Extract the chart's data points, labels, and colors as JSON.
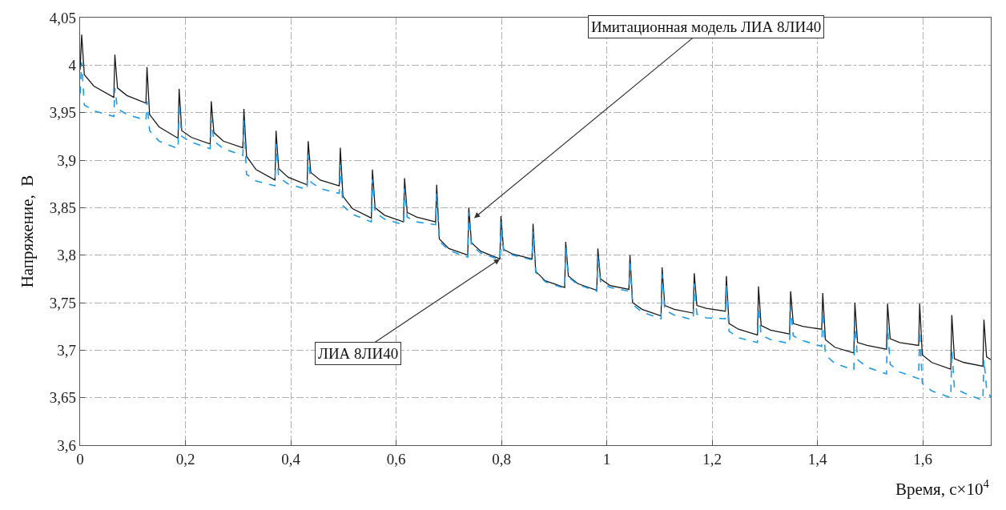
{
  "chart_data": {
    "type": "line",
    "xlabel": "Время, с×10$^{4}$",
    "ylabel": "Напряжение,  В",
    "x": [
      0,
      0.003,
      0.008,
      0.026,
      0.064,
      0.066,
      0.071,
      0.089,
      0.125,
      0.127,
      0.132,
      0.15,
      0.186,
      0.188,
      0.193,
      0.211,
      0.247,
      0.249,
      0.254,
      0.272,
      0.309,
      0.311,
      0.316,
      0.334,
      0.37,
      0.372,
      0.377,
      0.395,
      0.431,
      0.433,
      0.438,
      0.456,
      0.492,
      0.494,
      0.499,
      0.517,
      0.553,
      0.555,
      0.56,
      0.578,
      0.614,
      0.616,
      0.621,
      0.639,
      0.675,
      0.677,
      0.682,
      0.7,
      0.736,
      0.738,
      0.743,
      0.761,
      0.797,
      0.799,
      0.804,
      0.822,
      0.858,
      0.86,
      0.865,
      0.883,
      0.92,
      0.922,
      0.927,
      0.945,
      0.981,
      0.983,
      0.988,
      1.006,
      1.042,
      1.044,
      1.049,
      1.067,
      1.103,
      1.105,
      1.11,
      1.128,
      1.164,
      1.166,
      1.171,
      1.189,
      1.225,
      1.227,
      1.232,
      1.25,
      1.286,
      1.288,
      1.293,
      1.311,
      1.347,
      1.349,
      1.354,
      1.372,
      1.408,
      1.41,
      1.415,
      1.433,
      1.469,
      1.471,
      1.476,
      1.494,
      1.531,
      1.533,
      1.538,
      1.556,
      1.592,
      1.594,
      1.599,
      1.617,
      1.653,
      1.655,
      1.66,
      1.678,
      1.714,
      1.716,
      1.721,
      1.729
    ],
    "series": [
      {
        "color": "#1a1a1a",
        "line_style": "solid",
        "values": [
          3.995,
          4.032,
          3.99,
          3.978,
          3.966,
          4.011,
          3.976,
          3.968,
          3.96,
          3.998,
          3.948,
          3.935,
          3.923,
          3.975,
          3.931,
          3.924,
          3.917,
          3.962,
          3.929,
          3.92,
          3.913,
          3.954,
          3.904,
          3.89,
          3.879,
          3.931,
          3.891,
          3.882,
          3.874,
          3.92,
          3.887,
          3.879,
          3.873,
          3.913,
          3.862,
          3.849,
          3.839,
          3.89,
          3.85,
          3.842,
          3.835,
          3.881,
          3.845,
          3.84,
          3.835,
          3.874,
          3.817,
          3.807,
          3.8,
          3.85,
          3.813,
          3.804,
          3.796,
          3.841,
          3.806,
          3.801,
          3.796,
          3.833,
          3.783,
          3.773,
          3.766,
          3.814,
          3.778,
          3.77,
          3.763,
          3.807,
          3.775,
          3.768,
          3.764,
          3.8,
          3.75,
          3.743,
          3.736,
          3.787,
          3.747,
          3.743,
          3.739,
          3.781,
          3.747,
          3.744,
          3.741,
          3.778,
          3.728,
          3.722,
          3.716,
          3.767,
          3.726,
          3.721,
          3.717,
          3.762,
          3.728,
          3.725,
          3.722,
          3.76,
          3.711,
          3.703,
          3.697,
          3.75,
          3.708,
          3.705,
          3.701,
          3.749,
          3.712,
          3.708,
          3.705,
          3.749,
          3.695,
          3.687,
          3.68,
          3.737,
          3.691,
          3.687,
          3.683,
          3.732,
          3.693,
          3.69
        ]
      },
      {
        "color": "#1e9be8",
        "line_style": "dashed",
        "values": [
          3.97,
          4.003,
          3.958,
          3.952,
          3.946,
          3.976,
          3.954,
          3.948,
          3.942,
          3.962,
          3.931,
          3.92,
          3.912,
          3.959,
          3.925,
          3.919,
          3.912,
          3.943,
          3.92,
          3.912,
          3.905,
          3.942,
          3.885,
          3.878,
          3.873,
          3.917,
          3.882,
          3.875,
          3.869,
          3.905,
          3.877,
          3.87,
          3.865,
          3.895,
          3.852,
          3.843,
          3.835,
          3.88,
          3.845,
          3.838,
          3.832,
          3.87,
          3.84,
          3.835,
          3.832,
          3.865,
          3.815,
          3.805,
          3.798,
          3.845,
          3.81,
          3.802,
          3.795,
          3.835,
          3.805,
          3.8,
          3.795,
          3.825,
          3.782,
          3.772,
          3.765,
          3.81,
          3.777,
          3.769,
          3.762,
          3.8,
          3.772,
          3.766,
          3.762,
          3.795,
          3.748,
          3.74,
          3.733,
          3.78,
          3.742,
          3.737,
          3.732,
          3.77,
          3.738,
          3.734,
          3.733,
          3.77,
          3.72,
          3.713,
          3.708,
          3.745,
          3.716,
          3.711,
          3.707,
          3.745,
          3.715,
          3.71,
          3.704,
          3.74,
          3.695,
          3.686,
          3.679,
          3.73,
          3.69,
          3.682,
          3.675,
          3.725,
          3.685,
          3.677,
          3.67,
          3.72,
          3.665,
          3.657,
          3.65,
          3.7,
          3.66,
          3.655,
          3.647,
          3.69,
          3.66,
          3.65
        ]
      }
    ],
    "xlim": [
      0,
      1.729
    ],
    "xticks": [
      0,
      {
        "value": 0.2,
        "label": "0,2"
      },
      {
        "value": 0.4,
        "label": "0,4"
      },
      {
        "value": 0.6,
        "label": "0,6"
      },
      {
        "value": 0.8,
        "label": "0,8"
      },
      1,
      {
        "value": 1.2,
        "label": "1,2"
      },
      {
        "value": 1.4,
        "label": "1,4"
      },
      {
        "value": 1.6,
        "label": "1,6"
      }
    ],
    "ylim": [
      3.6,
      4.05
    ],
    "yticks": [
      {
        "value": 3.6,
        "label": "3,6"
      },
      {
        "value": 3.65,
        "label": "3,65"
      },
      {
        "value": 3.7,
        "label": "3,7"
      },
      {
        "value": 3.75,
        "label": "3,75"
      },
      {
        "value": 3.8,
        "label": "3,8"
      },
      {
        "value": 3.85,
        "label": "3,85"
      },
      {
        "value": 3.9,
        "label": "3,9"
      },
      {
        "value": 3.95,
        "label": "3,95"
      },
      4,
      {
        "value": 4.05,
        "label": "4,05"
      }
    ],
    "grid": true,
    "annotations": [
      {
        "text": "Имитационная модель ЛИА 8ЛИ40",
        "x": 0.748,
        "y": 3.839
      },
      {
        "text": "ЛИА 8ЛИ40",
        "x": 0.797,
        "y": 3.796
      }
    ]
  }
}
